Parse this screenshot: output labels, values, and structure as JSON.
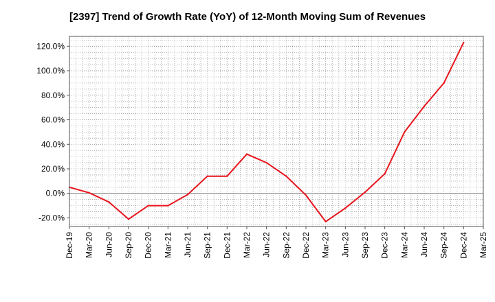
{
  "chart_data": {
    "type": "line",
    "title": "[2397]  Trend of Growth Rate (YoY) of 12-Month Moving Sum of Revenues",
    "xlabel": "",
    "ylabel": "",
    "x_tick_labels": [
      "Dec-19",
      "Mar-20",
      "Jun-20",
      "Sep-20",
      "Dec-20",
      "Mar-21",
      "Jun-21",
      "Sep-21",
      "Dec-21",
      "Mar-22",
      "Jun-22",
      "Sep-22",
      "Dec-22",
      "Mar-23",
      "Jun-23",
      "Sep-23",
      "Dec-23",
      "Mar-24",
      "Jun-24",
      "Sep-24",
      "Dec-24",
      "Mar-25"
    ],
    "y_tick_labels": [
      "-20.0%",
      "0.0%",
      "20.0%",
      "40.0%",
      "60.0%",
      "80.0%",
      "100.0%",
      "120.0%"
    ],
    "y_ticks": [
      -20,
      0,
      20,
      40,
      60,
      80,
      100,
      120
    ],
    "ylim": [
      -27,
      128
    ],
    "grid": true,
    "line_color": "#e8141c",
    "series": [
      {
        "x": [
          "Dec-19",
          "Mar-20",
          "Jun-20",
          "Sep-20",
          "Dec-20",
          "Mar-21",
          "Jun-21",
          "Sep-21",
          "Dec-21",
          "Mar-22",
          "Jun-22",
          "Sep-22",
          "Dec-22",
          "Mar-23",
          "Jun-23",
          "Sep-23",
          "Dec-23",
          "Mar-24",
          "Jun-24",
          "Sep-24",
          "Dec-24"
        ],
        "values": [
          5,
          0.5,
          -7,
          -21,
          -10,
          -10,
          -1,
          14,
          14,
          32,
          25,
          14,
          -1.5,
          -23,
          -12,
          1,
          16,
          50,
          71,
          90,
          123
        ]
      }
    ]
  }
}
